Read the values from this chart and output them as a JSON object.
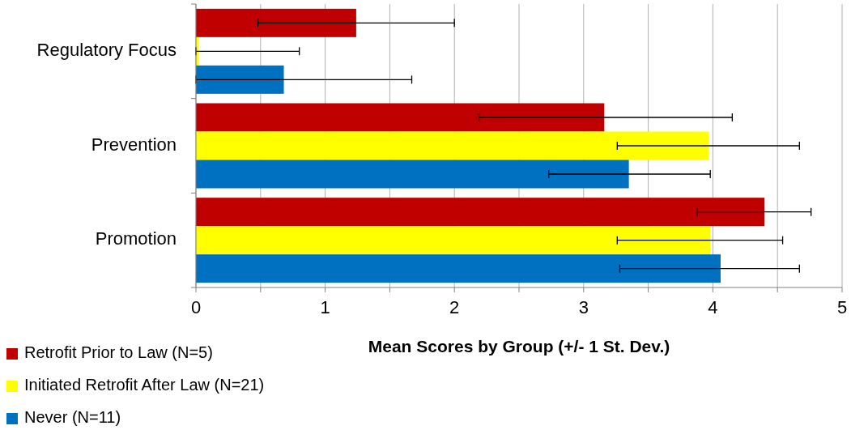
{
  "chart_data": {
    "type": "bar",
    "orientation": "horizontal",
    "xlabel": "Mean Scores by Group (+/- 1 St. Dev.)",
    "categories": [
      "Regulatory Focus",
      "Prevention",
      "Promotion"
    ],
    "series": [
      {
        "name": "Retrofit Prior to Law (N=5)",
        "color": "#c00000",
        "values": [
          1.24,
          3.16,
          4.4
        ],
        "errors": [
          [
            0.48,
            2.0
          ],
          [
            2.19,
            4.15
          ],
          [
            3.88,
            4.76
          ]
        ]
      },
      {
        "name": "Initiated Retrofit After Law (N=21)",
        "color": "#ffff00",
        "values": [
          0.02,
          3.97,
          3.98
        ],
        "errors": [
          [
            0,
            0.8
          ],
          [
            3.26,
            4.67
          ],
          [
            3.26,
            4.54
          ]
        ]
      },
      {
        "name": "Never (N=11)",
        "color": "#0070c0",
        "values": [
          0.68,
          3.35,
          4.06
        ],
        "errors": [
          [
            0,
            1.67
          ],
          [
            2.73,
            3.98
          ],
          [
            3.28,
            4.67
          ]
        ]
      }
    ],
    "xlim": [
      0,
      5
    ],
    "xticks": [
      0,
      {
        "value": 0.5,
        "label": null
      },
      1,
      {
        "value": 1.5,
        "label": null
      },
      2,
      {
        "value": 2.5,
        "label": null
      },
      3,
      {
        "value": 3.5,
        "label": null
      },
      4,
      {
        "value": 4.5,
        "label": null
      },
      5
    ],
    "grid": "x",
    "legend": "bottom left"
  }
}
